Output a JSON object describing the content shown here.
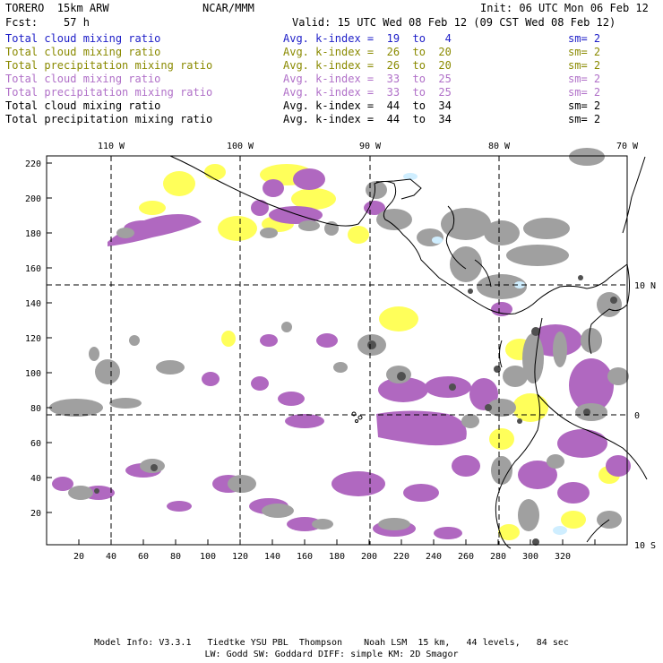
{
  "header": {
    "model": "TORERO  15km ARW",
    "center": "NCAR/MMM",
    "init": "Init: 06 UTC Mon 06 Feb 12",
    "fcst": "Fcst:    57 h",
    "valid": "Valid: 15 UTC Wed 08 Feb 12 (09 CST Wed 08 Feb 12)"
  },
  "legend": [
    {
      "field": "Total cloud mixing ratio",
      "kindex": "Avg. k-index =  19  to   4",
      "sm": "sm= 2",
      "color": "#2020c8"
    },
    {
      "field": "Total cloud mixing ratio",
      "kindex": "Avg. k-index =  26  to  20",
      "sm": "sm= 2",
      "color": "#8a8a00"
    },
    {
      "field": "Total precipitation mixing ratio",
      "kindex": "Avg. k-index =  26  to  20",
      "sm": "sm= 2",
      "color": "#8a8a00"
    },
    {
      "field": "Total cloud mixing ratio",
      "kindex": "Avg. k-index =  33  to  25",
      "sm": "sm= 2",
      "color": "#b070c8"
    },
    {
      "field": "Total precipitation mixing ratio",
      "kindex": "Avg. k-index =  33  to  25",
      "sm": "sm= 2",
      "color": "#b070c8"
    },
    {
      "field": "Total cloud mixing ratio",
      "kindex": "Avg. k-index =  44  to  34",
      "sm": "sm= 2",
      "color": "#000000"
    },
    {
      "field": "Total precipitation mixing ratio",
      "kindex": "Avg. k-index =  44  to  34",
      "sm": "sm= 2",
      "color": "#000000"
    }
  ],
  "axes": {
    "top_lon_labels": [
      "110 W",
      "100 W",
      "90 W",
      "80 W",
      "70 W"
    ],
    "right_lat_labels": [
      "10 N",
      "0",
      "10 S"
    ],
    "x_ticks": [
      "20",
      "40",
      "60",
      "80",
      "100",
      "120",
      "140",
      "160",
      "180",
      "200",
      "220",
      "240",
      "260",
      "280",
      "300",
      "320"
    ],
    "y_ticks": [
      "20",
      "40",
      "60",
      "80",
      "100",
      "120",
      "140",
      "160",
      "180",
      "200",
      "220"
    ]
  },
  "colors": {
    "yellow": "#ffff5a",
    "purple": "#b068c0",
    "gray": "#a0a0a0",
    "dark": "#505050",
    "lightblue": "#cfeeff"
  },
  "footer": {
    "line1": "Model Info: V3.3.1   Tiedtke YSU PBL  Thompson    Noah LSM  15 km,   44 levels,   84 sec",
    "line2": "LW: Godd SW: Goddard DIFF: simple KM: 2D Smagor"
  }
}
